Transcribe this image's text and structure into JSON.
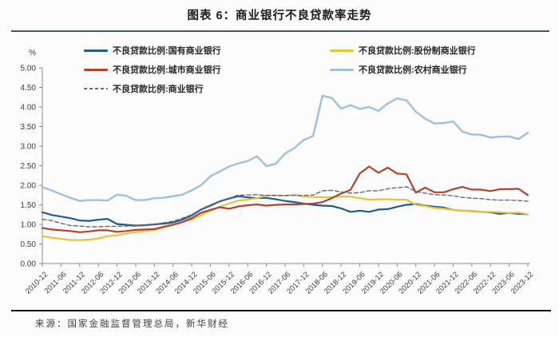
{
  "header": {
    "title": "图表 6：商业银行不良贷款率走势"
  },
  "footer": {
    "source": "来源：国家金融监督管理总局，新华财经"
  },
  "chart_data": {
    "type": "line",
    "title": "图表 6：商业银行不良贷款率走势",
    "ylabel": "%",
    "xlabel": "",
    "ylim": [
      0,
      5
    ],
    "grid": false,
    "legend_position": "top",
    "y_tick_labels": [
      "0.00",
      "0.50",
      "1.00",
      "1.50",
      "2.00",
      "2.50",
      "3.00",
      "3.50",
      "4.00",
      "4.50",
      "5.00"
    ],
    "x_tick_labels": [
      "2010-12",
      "2011-06",
      "2011-12",
      "2012-06",
      "2012-12",
      "2013-06",
      "2013-12",
      "2014-06",
      "2014-12",
      "2015-06",
      "2015-12",
      "2016-06",
      "2016-12",
      "2017-06",
      "2017-12",
      "2018-06",
      "2018-12",
      "2019-06",
      "2019-12",
      "2020-06",
      "2020-12",
      "2021-06",
      "2021-12",
      "2022-06",
      "2022-12",
      "2023-06",
      "2023-12"
    ],
    "x_points_per_tick": 2,
    "x_frequency": "quarterly",
    "style": {
      "axis_color": "#8c8c8c",
      "tick_text_color": "#3d3d3d"
    },
    "draw_order": [
      4,
      0,
      3,
      1,
      2
    ],
    "series": [
      {
        "key": "state-owned",
        "name": "不良贷款比例:国有商业银行",
        "color": "#1E5C99",
        "dash": "solid",
        "width": 2.2,
        "legend_col": 0,
        "values": [
          1.31,
          1.24,
          1.2,
          1.16,
          1.1,
          1.09,
          1.12,
          1.14,
          1.01,
          0.99,
          0.97,
          0.98,
          1.0,
          1.02,
          1.05,
          1.12,
          1.23,
          1.38,
          1.48,
          1.59,
          1.66,
          1.72,
          1.69,
          1.67,
          1.68,
          1.64,
          1.6,
          1.57,
          1.53,
          1.5,
          1.48,
          1.47,
          1.41,
          1.32,
          1.35,
          1.32,
          1.38,
          1.39,
          1.45,
          1.5,
          1.52,
          1.48,
          1.45,
          1.43,
          1.37,
          1.35,
          1.34,
          1.32,
          1.31,
          1.27,
          1.29,
          1.27,
          1.26
        ]
      },
      {
        "key": "city",
        "name": "不良贷款比例:城市商业银行",
        "color": "#B2432B",
        "dash": "solid",
        "width": 2.2,
        "legend_col": 0,
        "values": [
          0.91,
          0.87,
          0.85,
          0.83,
          0.8,
          0.82,
          0.85,
          0.85,
          0.81,
          0.83,
          0.86,
          0.87,
          0.88,
          0.94,
          0.99,
          1.06,
          1.16,
          1.3,
          1.37,
          1.44,
          1.4,
          1.46,
          1.49,
          1.51,
          1.48,
          1.5,
          1.51,
          1.51,
          1.52,
          1.53,
          1.57,
          1.67,
          1.79,
          1.88,
          2.3,
          2.48,
          2.32,
          2.45,
          2.3,
          2.28,
          1.81,
          1.94,
          1.82,
          1.82,
          1.9,
          1.96,
          1.89,
          1.89,
          1.85,
          1.9,
          1.9,
          1.91,
          1.75
        ]
      },
      {
        "key": "commercial",
        "name": "不良贷款比例:商业银行",
        "color": "#696969",
        "dash": "dashed",
        "width": 1.4,
        "legend_col": 0,
        "values": [
          1.13,
          1.1,
          1.03,
          0.97,
          0.96,
          0.94,
          0.94,
          0.95,
          0.95,
          0.96,
          0.96,
          0.97,
          1.0,
          1.04,
          1.08,
          1.16,
          1.25,
          1.39,
          1.5,
          1.59,
          1.67,
          1.75,
          1.75,
          1.76,
          1.74,
          1.74,
          1.74,
          1.74,
          1.74,
          1.75,
          1.86,
          1.87,
          1.83,
          1.8,
          1.81,
          1.86,
          1.86,
          1.91,
          1.94,
          1.96,
          1.84,
          1.8,
          1.76,
          1.75,
          1.73,
          1.69,
          1.67,
          1.66,
          1.63,
          1.62,
          1.62,
          1.61,
          1.59
        ]
      },
      {
        "key": "joint-stock",
        "name": "不良贷款比例:股份制商业银行",
        "color": "#EAC13B",
        "dash": "solid",
        "width": 2.2,
        "legend_col": 1,
        "values": [
          0.7,
          0.66,
          0.63,
          0.6,
          0.6,
          0.61,
          0.64,
          0.7,
          0.72,
          0.77,
          0.8,
          0.83,
          0.86,
          0.92,
          0.99,
          1.06,
          1.12,
          1.24,
          1.35,
          1.45,
          1.53,
          1.61,
          1.63,
          1.67,
          1.74,
          1.74,
          1.73,
          1.76,
          1.71,
          1.7,
          1.69,
          1.7,
          1.71,
          1.71,
          1.67,
          1.63,
          1.64,
          1.64,
          1.63,
          1.63,
          1.5,
          1.47,
          1.42,
          1.4,
          1.37,
          1.35,
          1.35,
          1.32,
          1.32,
          1.31,
          1.29,
          1.3,
          1.26
        ]
      },
      {
        "key": "rural",
        "name": "不良贷款比例:农村商业银行",
        "color": "#9DBFE0",
        "dash": "solid",
        "width": 2.4,
        "legend_col": 1,
        "values": [
          1.95,
          1.87,
          1.77,
          1.68,
          1.6,
          1.62,
          1.62,
          1.61,
          1.76,
          1.73,
          1.62,
          1.62,
          1.67,
          1.68,
          1.72,
          1.76,
          1.87,
          2.0,
          2.23,
          2.35,
          2.48,
          2.56,
          2.62,
          2.74,
          2.49,
          2.55,
          2.81,
          2.95,
          3.16,
          3.26,
          4.29,
          4.23,
          3.96,
          4.05,
          3.95,
          4.0,
          3.9,
          4.09,
          4.22,
          4.17,
          3.88,
          3.7,
          3.58,
          3.59,
          3.63,
          3.37,
          3.3,
          3.29,
          3.22,
          3.24,
          3.25,
          3.18,
          3.34
        ]
      }
    ]
  }
}
